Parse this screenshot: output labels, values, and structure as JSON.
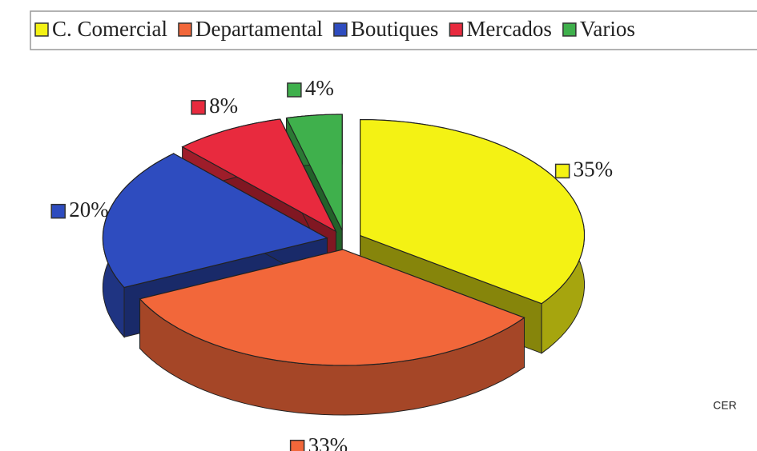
{
  "chart_data": {
    "type": "pie",
    "categories": [
      "C. Comercial",
      "Departamental",
      "Boutiques",
      "Mercados",
      "Varios"
    ],
    "values": [
      35,
      33,
      20,
      8,
      4
    ],
    "value_labels": [
      "35%",
      "33%",
      "20%",
      "8%",
      "4%"
    ],
    "colors": [
      "#f4f214",
      "#f2673a",
      "#2e4cbf",
      "#e82a3e",
      "#3fb04c"
    ],
    "legend": "top",
    "annotation": "CER"
  }
}
